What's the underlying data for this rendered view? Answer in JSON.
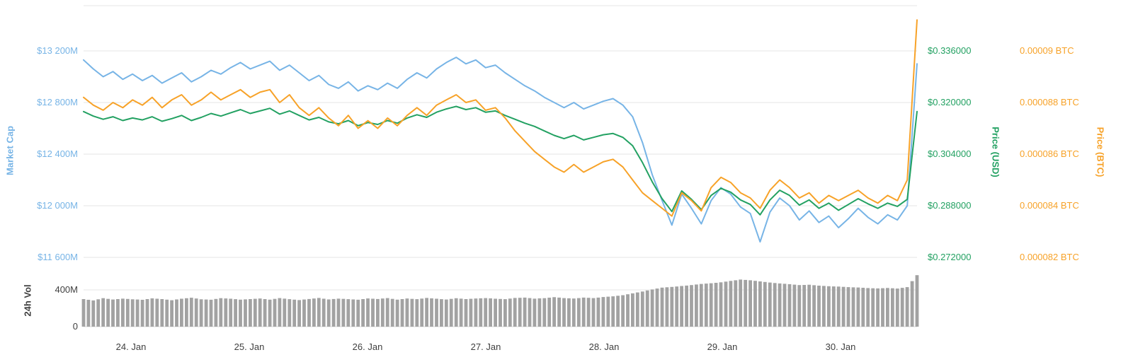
{
  "page": {
    "background": "#ffffff"
  },
  "axes": {
    "market_cap": {
      "title": "Market Cap",
      "color": "#77b4e6",
      "labels": [
        "$13 200M",
        "$12 800M",
        "$12 400M",
        "$12 000M",
        "$11 600M"
      ]
    },
    "volume": {
      "title": "24h Vol",
      "color": "#3f3f3f",
      "labels": [
        "400M",
        "0"
      ]
    },
    "price_usd": {
      "title": "Price (USD)",
      "color": "#23a162",
      "labels": [
        "$0.336000",
        "$0.320000",
        "$0.304000",
        "$0.288000",
        "$0.272000"
      ]
    },
    "price_btc": {
      "title": "Price (BTC)",
      "color": "#f7a228",
      "labels": [
        "0.00009 BTC",
        "0.000088 BTC",
        "0.000086 BTC",
        "0.000084 BTC",
        "0.000082 BTC"
      ]
    },
    "x": {
      "labels": [
        "24. Jan",
        "25. Jan",
        "26. Jan",
        "27. Jan",
        "28. Jan",
        "29. Jan",
        "30. Jan"
      ]
    }
  },
  "chart_data": {
    "type": "line",
    "title": "",
    "x_unit": "day of January (approx. 2-hour samples)",
    "x_start_day": 23.6,
    "x_end_day": 30.65,
    "x_tick_labels": [
      "24. Jan",
      "25. Jan",
      "26. Jan",
      "27. Jan",
      "28. Jan",
      "29. Jan",
      "30. Jan"
    ],
    "grid": true,
    "legend": false,
    "axis_ticks": {
      "market_cap": [
        13200,
        12800,
        12400,
        12000,
        11600
      ],
      "price_usd": [
        0.336,
        0.32,
        0.304,
        0.288,
        0.272
      ],
      "price_btc": [
        9e-05,
        8.8e-05,
        8.6e-05,
        8.4e-05,
        8.2e-05
      ],
      "volume": [
        400,
        0
      ]
    },
    "series": [
      {
        "name": "Market Cap",
        "yaxis": "market_cap",
        "unit": "USD millions",
        "color": "#77b4e6",
        "type": "line",
        "values": [
          13130,
          13060,
          13000,
          13040,
          12980,
          13020,
          12970,
          13010,
          12950,
          12990,
          13030,
          12960,
          13000,
          13050,
          13020,
          13070,
          13110,
          13060,
          13090,
          13120,
          13050,
          13090,
          13030,
          12970,
          13010,
          12940,
          12910,
          12960,
          12890,
          12930,
          12900,
          12950,
          12910,
          12980,
          13030,
          12990,
          13060,
          13110,
          13150,
          13100,
          13130,
          13070,
          13090,
          13030,
          12980,
          12930,
          12890,
          12840,
          12800,
          12760,
          12800,
          12750,
          12780,
          12810,
          12830,
          12780,
          12690,
          12490,
          12240,
          12040,
          11850,
          12090,
          11980,
          11860,
          12040,
          12140,
          12090,
          11990,
          11940,
          11720,
          11950,
          12060,
          12000,
          11890,
          11960,
          11870,
          11920,
          11830,
          11900,
          11980,
          11910,
          11860,
          11930,
          11890,
          12000,
          13100
        ]
      },
      {
        "name": "Price (USD)",
        "yaxis": "price_usd",
        "unit": "USD",
        "color": "#23a162",
        "type": "line",
        "values": [
          0.3172,
          0.3158,
          0.3148,
          0.3156,
          0.3144,
          0.3152,
          0.3146,
          0.3156,
          0.3142,
          0.315,
          0.316,
          0.3144,
          0.3154,
          0.3166,
          0.3158,
          0.3168,
          0.3178,
          0.3166,
          0.3174,
          0.3182,
          0.3164,
          0.3174,
          0.316,
          0.3146,
          0.3154,
          0.314,
          0.3134,
          0.3144,
          0.3128,
          0.3138,
          0.3132,
          0.3144,
          0.3136,
          0.3152,
          0.3162,
          0.3154,
          0.317,
          0.318,
          0.3188,
          0.3178,
          0.3184,
          0.317,
          0.3174,
          0.316,
          0.3148,
          0.3136,
          0.3126,
          0.3112,
          0.3098,
          0.3088,
          0.3098,
          0.3084,
          0.3092,
          0.31,
          0.3104,
          0.3092,
          0.3066,
          0.3014,
          0.2954,
          0.2902,
          0.2862,
          0.2926,
          0.29,
          0.2868,
          0.2912,
          0.2934,
          0.2922,
          0.2898,
          0.2884,
          0.2852,
          0.2898,
          0.2928,
          0.2912,
          0.2882,
          0.2898,
          0.2872,
          0.2888,
          0.2866,
          0.2884,
          0.2902,
          0.2886,
          0.2872,
          0.2888,
          0.2878,
          0.29,
          0.3172
        ]
      },
      {
        "name": "Price (BTC)",
        "yaxis": "price_btc",
        "unit": "BTC",
        "color": "#f7a228",
        "type": "line",
        "values": [
          8.82e-05,
          8.79e-05,
          8.77e-05,
          8.8e-05,
          8.78e-05,
          8.81e-05,
          8.79e-05,
          8.82e-05,
          8.78e-05,
          8.81e-05,
          8.83e-05,
          8.79e-05,
          8.81e-05,
          8.84e-05,
          8.81e-05,
          8.83e-05,
          8.85e-05,
          8.82e-05,
          8.84e-05,
          8.85e-05,
          8.8e-05,
          8.83e-05,
          8.78e-05,
          8.75e-05,
          8.78e-05,
          8.74e-05,
          8.71e-05,
          8.75e-05,
          8.7e-05,
          8.73e-05,
          8.7e-05,
          8.74e-05,
          8.71e-05,
          8.75e-05,
          8.78e-05,
          8.75e-05,
          8.79e-05,
          8.81e-05,
          8.83e-05,
          8.8e-05,
          8.81e-05,
          8.77e-05,
          8.78e-05,
          8.74e-05,
          8.69e-05,
          8.65e-05,
          8.61e-05,
          8.58e-05,
          8.55e-05,
          8.53e-05,
          8.56e-05,
          8.53e-05,
          8.55e-05,
          8.57e-05,
          8.58e-05,
          8.55e-05,
          8.5e-05,
          8.45e-05,
          8.42e-05,
          8.39e-05,
          8.36e-05,
          8.45e-05,
          8.42e-05,
          8.38e-05,
          8.47e-05,
          8.51e-05,
          8.49e-05,
          8.45e-05,
          8.43e-05,
          8.39e-05,
          8.46e-05,
          8.5e-05,
          8.47e-05,
          8.43e-05,
          8.45e-05,
          8.41e-05,
          8.44e-05,
          8.42e-05,
          8.44e-05,
          8.46e-05,
          8.43e-05,
          8.41e-05,
          8.44e-05,
          8.42e-05,
          8.5e-05,
          9.12e-05
        ]
      },
      {
        "name": "24h Vol",
        "yaxis": "volume",
        "unit": "USD millions",
        "color": "#a2a2a2",
        "type": "column",
        "values": [
          300,
          285,
          310,
          295,
          305,
          298,
          292,
          308,
          300,
          288,
          304,
          315,
          298,
          293,
          310,
          304,
          294,
          300,
          306,
          294,
          311,
          299,
          289,
          301,
          312,
          296,
          305,
          299,
          293,
          307,
          301,
          311,
          294,
          306,
          299,
          312,
          304,
          295,
          309,
          300,
          306,
          311,
          304,
          299,
          312,
          316,
          305,
          310,
          321,
          311,
          306,
          316,
          311,
          322,
          330,
          342,
          362,
          382,
          405,
          425,
          432,
          442,
          452,
          465,
          472,
          482,
          498,
          512,
          505,
          492,
          480,
          470,
          462,
          452,
          456,
          446,
          440,
          436,
          430,
          426,
          420,
          416,
          421,
          415,
          430,
          560
        ]
      }
    ]
  }
}
